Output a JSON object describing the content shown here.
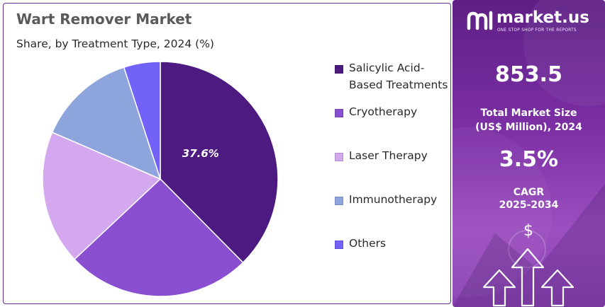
{
  "chart_data": {
    "type": "pie",
    "title": "Wart Remover Market",
    "subtitle": "Share, by Treatment Type, 2024 (%)",
    "slices": [
      {
        "label": "Salicylic Acid-Based Treatments",
        "value": 37.6,
        "display": "37.6%",
        "color": "#4c1a80"
      },
      {
        "label": "Cryotherapy",
        "value": 25.4,
        "display": "",
        "color": "#8a4fd0"
      },
      {
        "label": "Laser Therapy",
        "value": 18.5,
        "display": "",
        "color": "#d3a8ef"
      },
      {
        "label": "Immunotherapy",
        "value": 13.5,
        "display": "",
        "color": "#8ea4dc"
      },
      {
        "label": "Others",
        "value": 5.0,
        "display": "",
        "color": "#7262f7"
      }
    ],
    "legend_position": "right"
  },
  "brand": {
    "name": "market.us",
    "tagline": "ONE STOP SHOP FOR THE REPORTS"
  },
  "stats": {
    "market_size_value": "853.5",
    "market_size_label_line1": "Total Market Size",
    "market_size_label_line2": "(US$ Million), 2024",
    "cagr_value": "3.5%",
    "cagr_label_line1": "CAGR",
    "cagr_label_line2": "2025-2034"
  },
  "icons": {
    "dollar": "$",
    "logo": "market-us-logo-icon",
    "growth": "up-arrows-icon"
  }
}
